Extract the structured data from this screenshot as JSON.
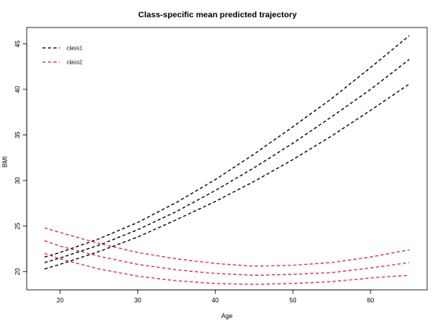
{
  "chart_data": {
    "type": "line",
    "title": "Class-specific mean predicted trajectory",
    "xlabel": "Age",
    "ylabel": "BMI",
    "xlim": [
      15.7,
      67.3
    ],
    "ylim": [
      18.0,
      46.8
    ],
    "xticks": [
      20,
      30,
      40,
      50,
      60
    ],
    "yticks": [
      20,
      25,
      30,
      35,
      40,
      45
    ],
    "grid": false,
    "legend": {
      "position": "top-left",
      "entries": [
        "class1",
        "class2"
      ]
    },
    "series": [
      {
        "name": "class1",
        "color": "#000000",
        "style": "dashed",
        "lines": [
          {
            "band": "upper",
            "x": [
              18,
              20,
              25,
              30,
              35,
              40,
              45,
              50,
              55,
              60,
              65
            ],
            "y": [
              21.6,
              22.1,
              23.6,
              25.4,
              27.6,
              30.1,
              32.9,
              35.9,
              39.0,
              42.4,
              45.9
            ]
          },
          {
            "band": "mean",
            "x": [
              18,
              20,
              25,
              30,
              35,
              40,
              45,
              50,
              55,
              60,
              65
            ],
            "y": [
              21.0,
              21.5,
              22.9,
              24.6,
              26.6,
              28.9,
              31.4,
              34.1,
              37.0,
              40.0,
              43.3
            ]
          },
          {
            "band": "lower",
            "x": [
              18,
              20,
              25,
              30,
              35,
              40,
              45,
              50,
              55,
              60,
              65
            ],
            "y": [
              20.3,
              20.8,
              22.2,
              23.8,
              25.7,
              27.7,
              29.9,
              32.3,
              34.9,
              37.7,
              40.6
            ]
          }
        ]
      },
      {
        "name": "class2",
        "color": "#e0245e",
        "style": "dashed",
        "lines": [
          {
            "band": "upper",
            "x": [
              18,
              20,
              25,
              30,
              35,
              40,
              45,
              50,
              55,
              60,
              65
            ],
            "y": [
              24.8,
              24.3,
              23.1,
              22.1,
              21.4,
              20.9,
              20.6,
              20.7,
              21.0,
              21.6,
              22.4
            ]
          },
          {
            "band": "mean",
            "x": [
              18,
              20,
              25,
              30,
              35,
              40,
              45,
              50,
              55,
              60,
              65
            ],
            "y": [
              23.4,
              22.8,
              21.7,
              20.8,
              20.2,
              19.8,
              19.6,
              19.7,
              19.9,
              20.4,
              21.0
            ]
          },
          {
            "band": "lower",
            "x": [
              18,
              20,
              25,
              30,
              35,
              40,
              45,
              50,
              55,
              60,
              65
            ],
            "y": [
              22.0,
              21.4,
              20.3,
              19.5,
              19.0,
              18.7,
              18.6,
              18.7,
              18.9,
              19.3,
              19.6
            ]
          }
        ]
      }
    ]
  }
}
